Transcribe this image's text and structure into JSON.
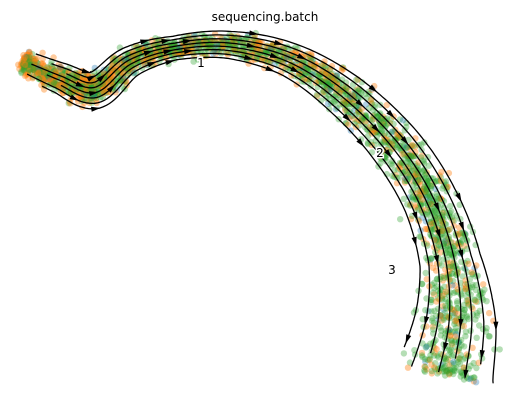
{
  "chart_data": {
    "type": "scatter",
    "title": "sequencing.batch",
    "xlabel": "",
    "ylabel": "",
    "axes_visible": false,
    "grid": false,
    "legend": "none",
    "description_of_overlay": "velocity streamlines with arrowheads",
    "series": [
      {
        "color": "#1f77b4",
        "point_alpha": 0.35
      },
      {
        "color": "#ff7f0e",
        "point_alpha": 0.4
      },
      {
        "color": "#2ca02c",
        "point_alpha": 0.35
      }
    ],
    "cluster_labels": [
      "1",
      "2",
      "3"
    ]
  }
}
